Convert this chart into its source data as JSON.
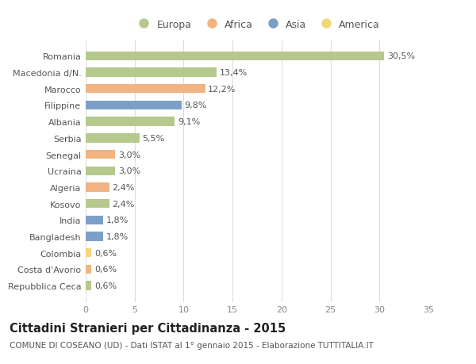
{
  "countries": [
    "Romania",
    "Macedonia d/N.",
    "Marocco",
    "Filippine",
    "Albania",
    "Serbia",
    "Senegal",
    "Ucraina",
    "Algeria",
    "Kosovo",
    "India",
    "Bangladesh",
    "Colombia",
    "Costa d'Avorio",
    "Repubblica Ceca"
  ],
  "values": [
    30.5,
    13.4,
    12.2,
    9.8,
    9.1,
    5.5,
    3.0,
    3.0,
    2.4,
    2.4,
    1.8,
    1.8,
    0.6,
    0.6,
    0.6
  ],
  "labels": [
    "30,5%",
    "13,4%",
    "12,2%",
    "9,8%",
    "9,1%",
    "5,5%",
    "3,0%",
    "3,0%",
    "2,4%",
    "2,4%",
    "1,8%",
    "1,8%",
    "0,6%",
    "0,6%",
    "0,6%"
  ],
  "continents": [
    "Europa",
    "Europa",
    "Africa",
    "Asia",
    "Europa",
    "Europa",
    "Africa",
    "Europa",
    "Africa",
    "Europa",
    "Asia",
    "Asia",
    "America",
    "Africa",
    "Europa"
  ],
  "colors": {
    "Europa": "#b5c98e",
    "Africa": "#f0b482",
    "Asia": "#7b9fc7",
    "America": "#f5d57a"
  },
  "legend_order": [
    "Europa",
    "Africa",
    "Asia",
    "America"
  ],
  "xlim": [
    0,
    35
  ],
  "xticks": [
    0,
    5,
    10,
    15,
    20,
    25,
    30,
    35
  ],
  "title": "Cittadini Stranieri per Cittadinanza - 2015",
  "subtitle": "COMUNE DI COSEANO (UD) - Dati ISTAT al 1° gennaio 2015 - Elaborazione TUTTITALIA.IT",
  "bg_color": "#ffffff",
  "grid_color": "#dddddd",
  "bar_height": 0.55,
  "label_fontsize": 8,
  "tick_fontsize": 8,
  "title_fontsize": 10.5,
  "subtitle_fontsize": 7.5
}
